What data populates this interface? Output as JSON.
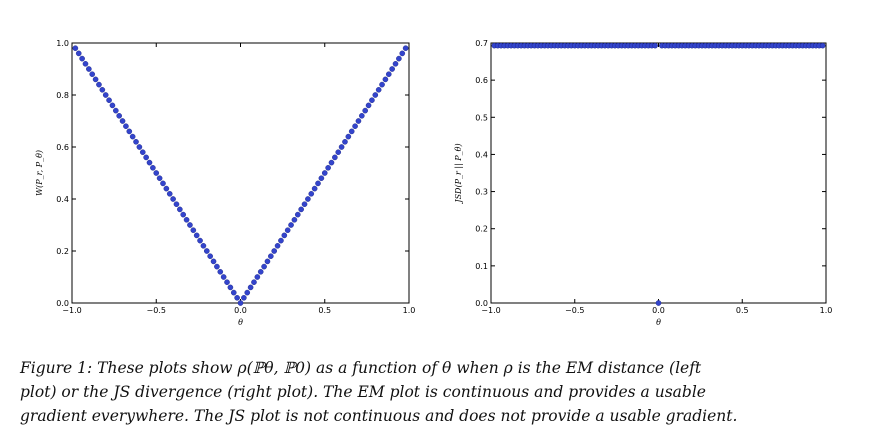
{
  "chart_data": [
    {
      "type": "scatter",
      "xlabel": "θ",
      "ylabel": "W(P_r, P_θ)",
      "xlim": [
        -1.0,
        1.0
      ],
      "ylim": [
        0.0,
        1.0
      ],
      "xticks": [
        "−1.0",
        "−0.5",
        "0.0",
        "0.5",
        "1.0"
      ],
      "yticks": [
        "0.0",
        "0.2",
        "0.4",
        "0.6",
        "0.8",
        "1.0"
      ],
      "grid": false,
      "color": "#3344cc",
      "series": [
        {
          "x_range": [
            -0.98,
            0.98
          ],
          "num_points": 99,
          "formula": "y = |x|"
        }
      ]
    },
    {
      "type": "scatter",
      "xlabel": "θ",
      "ylabel": "JSD(P_r || P_θ)",
      "xlim": [
        -1.0,
        1.0
      ],
      "ylim": [
        0.0,
        0.7
      ],
      "xticks": [
        "−1.0",
        "−0.5",
        "0.0",
        "0.5",
        "1.0"
      ],
      "yticks": [
        "0.0",
        "0.1",
        "0.2",
        "0.3",
        "0.4",
        "0.5",
        "0.6",
        "0.7"
      ],
      "grid": false,
      "color": "#3344cc",
      "series": [
        {
          "x_range": [
            -0.98,
            0.98
          ],
          "num_points": 99,
          "formula": "y = 0.693 for x ≠ 0, y = 0 at x = 0"
        }
      ]
    }
  ],
  "caption": {
    "line1": "Figure 1: These plots show ρ(ℙθ, ℙ0) as a function of θ when ρ is the EM distance (left",
    "line2": "plot) or the JS divergence (right plot). The EM plot is continuous and provides a usable",
    "line3": "gradient everywhere. The JS plot is not continuous and does not provide a usable gradient."
  }
}
